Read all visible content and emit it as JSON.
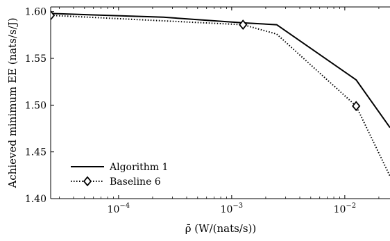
{
  "chart_data": {
    "type": "line",
    "title": "",
    "xlabel": "ρ̄ (W/(nats/s))",
    "ylabel": "Achieved minimum EE (nats/s/J)",
    "xscale": "log",
    "xlim": [
      2.51e-05,
      0.0251
    ],
    "ylim": [
      1.4,
      1.605
    ],
    "x_ticks": [
      {
        "value": 0.0001,
        "base": "10",
        "exp": "−4"
      },
      {
        "value": 0.001,
        "base": "10",
        "exp": "−3"
      },
      {
        "value": 0.01,
        "base": "10",
        "exp": "−2"
      }
    ],
    "y_ticks": [
      {
        "value": 1.4,
        "label": "1.40"
      },
      {
        "value": 1.45,
        "label": "1.45"
      },
      {
        "value": 1.5,
        "label": "1.50"
      },
      {
        "value": 1.55,
        "label": "1.55"
      },
      {
        "value": 1.6,
        "label": "1.60"
      }
    ],
    "grid": false,
    "legend_position": "bottom-left",
    "series": [
      {
        "name": "Algorithm 1",
        "style": "solid",
        "marker": "none",
        "color": "#000000",
        "x": [
          2.51e-05,
          0.00025,
          0.00126,
          0.0025,
          0.0126,
          0.0251
        ],
        "y": [
          1.598,
          1.594,
          1.588,
          1.586,
          1.527,
          1.476
        ]
      },
      {
        "name": "Baseline 6",
        "style": "dotted",
        "marker": "diamond",
        "color": "#000000",
        "x": [
          2.51e-05,
          0.00126,
          0.0025,
          0.0126,
          0.0251
        ],
        "y": [
          1.596,
          1.586,
          1.576,
          1.499,
          1.424
        ],
        "marker_points": [
          0,
          1,
          3
        ]
      }
    ]
  }
}
